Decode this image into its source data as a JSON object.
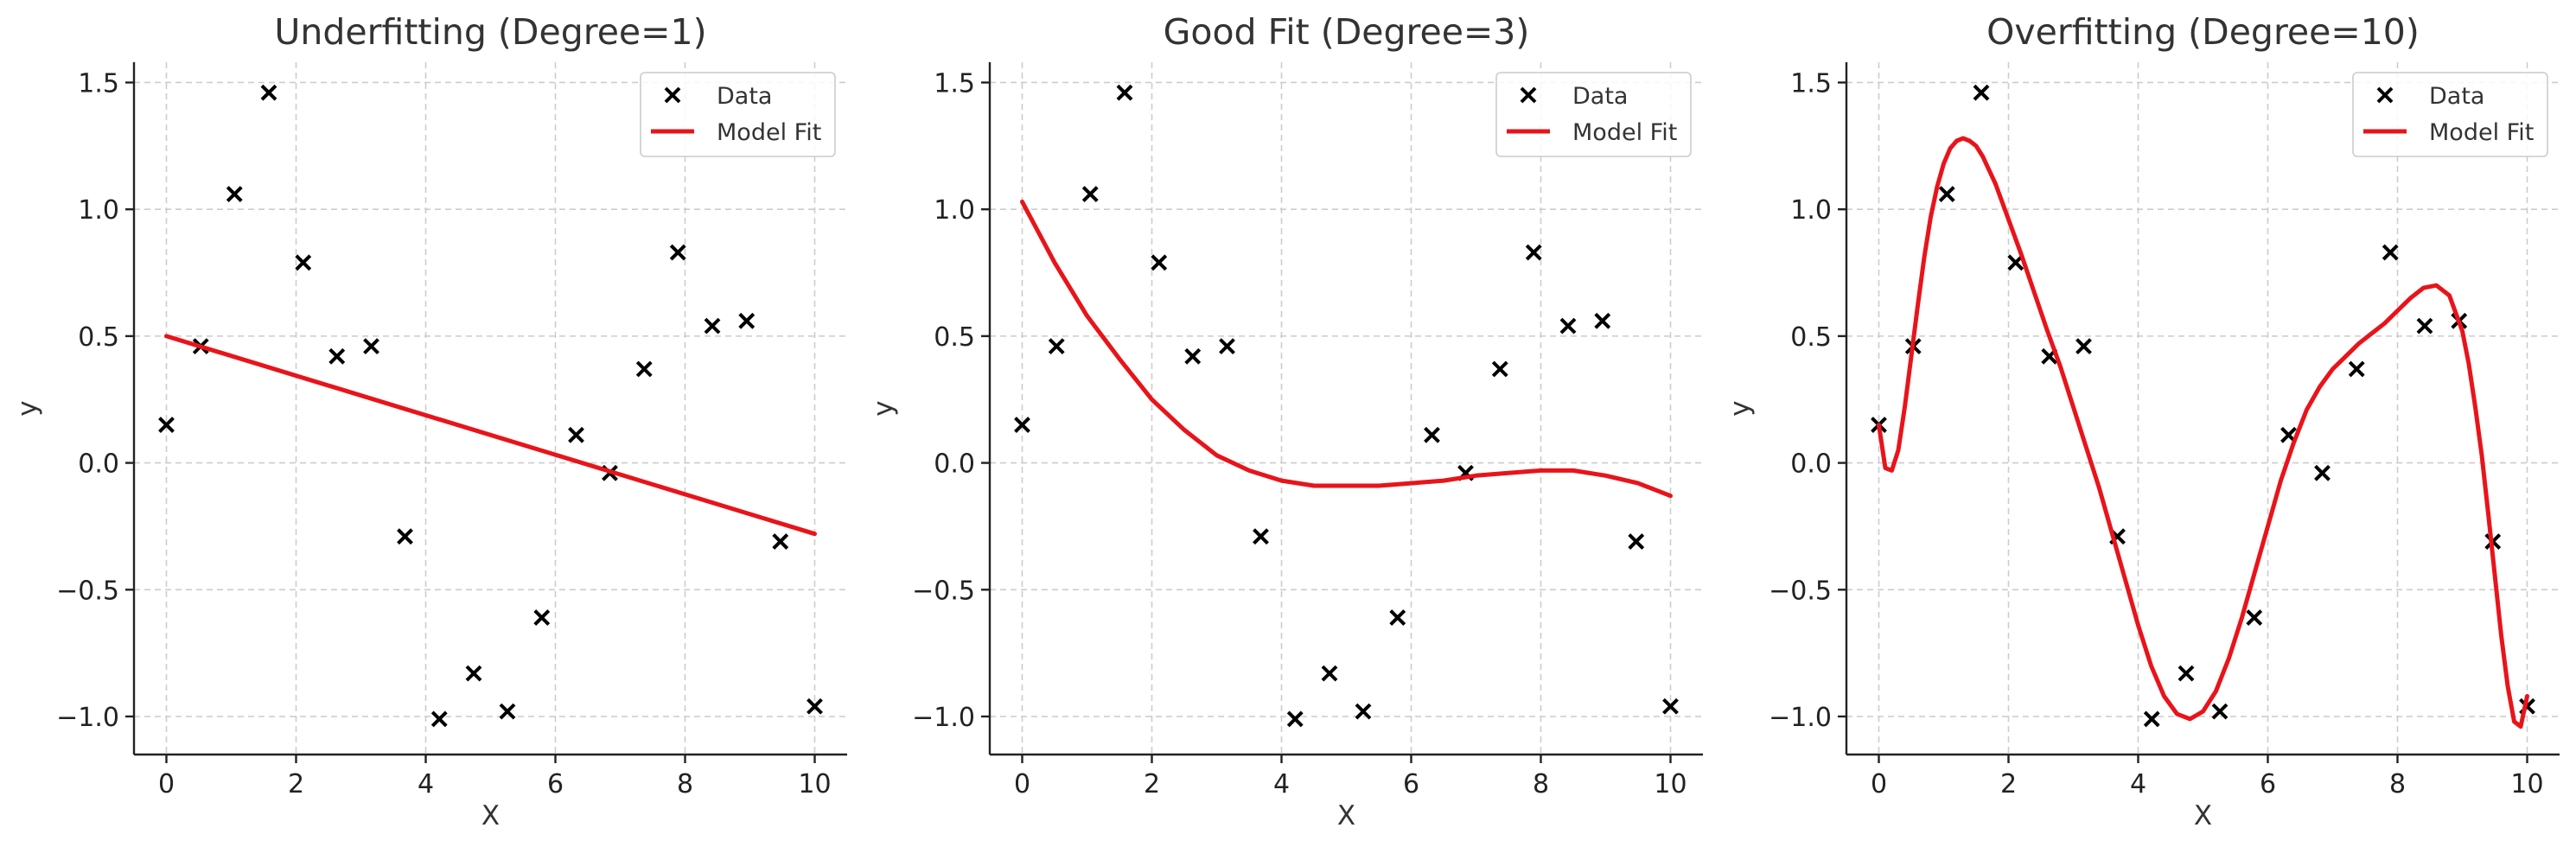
{
  "chart_data": [
    {
      "type": "scatter",
      "title": "Underfitting (Degree=1)",
      "xlabel": "X",
      "ylabel": "y",
      "xlim": [
        -0.5,
        10.5
      ],
      "ylim": [
        -1.15,
        1.58
      ],
      "xticks": [
        0,
        2,
        4,
        6,
        8,
        10
      ],
      "yticks": [
        -1.0,
        -0.5,
        0.0,
        0.5,
        1.0,
        1.5
      ],
      "grid": true,
      "legend": {
        "placement": "top-right",
        "entries": [
          "Data",
          "Model Fit"
        ]
      },
      "series": [
        {
          "name": "Data",
          "kind": "scatter",
          "marker": "x",
          "color": "#000000",
          "x": [
            0,
            0.53,
            1.05,
            1.58,
            2.11,
            2.63,
            3.16,
            3.68,
            4.21,
            4.74,
            5.26,
            5.79,
            6.32,
            6.84,
            7.37,
            7.89,
            8.42,
            8.95,
            9.47,
            10
          ],
          "y": [
            0.15,
            0.46,
            1.06,
            1.46,
            0.79,
            0.42,
            0.46,
            -0.29,
            -1.01,
            -0.83,
            -0.98,
            -0.61,
            0.11,
            -0.04,
            0.37,
            0.83,
            0.54,
            0.56,
            -0.31,
            -0.96
          ]
        },
        {
          "name": "Model Fit",
          "kind": "line",
          "color": "#e8141a",
          "x": [
            0,
            10
          ],
          "y": [
            0.5,
            -0.28
          ]
        }
      ]
    },
    {
      "type": "scatter",
      "title": "Good Fit (Degree=3)",
      "xlabel": "X",
      "ylabel": "y",
      "xlim": [
        -0.5,
        10.5
      ],
      "ylim": [
        -1.15,
        1.58
      ],
      "xticks": [
        0,
        2,
        4,
        6,
        8,
        10
      ],
      "yticks": [
        -1.0,
        -0.5,
        0.0,
        0.5,
        1.0,
        1.5
      ],
      "grid": true,
      "legend": {
        "placement": "top-right",
        "entries": [
          "Data",
          "Model Fit"
        ]
      },
      "series": [
        {
          "name": "Data",
          "kind": "scatter",
          "marker": "x",
          "color": "#000000",
          "x": [
            0,
            0.53,
            1.05,
            1.58,
            2.11,
            2.63,
            3.16,
            3.68,
            4.21,
            4.74,
            5.26,
            5.79,
            6.32,
            6.84,
            7.37,
            7.89,
            8.42,
            8.95,
            9.47,
            10
          ],
          "y": [
            0.15,
            0.46,
            1.06,
            1.46,
            0.79,
            0.42,
            0.46,
            -0.29,
            -1.01,
            -0.83,
            -0.98,
            -0.61,
            0.11,
            -0.04,
            0.37,
            0.83,
            0.54,
            0.56,
            -0.31,
            -0.96
          ]
        },
        {
          "name": "Model Fit",
          "kind": "line",
          "color": "#e8141a",
          "x": [
            0,
            0.5,
            1,
            1.5,
            2,
            2.5,
            3,
            3.5,
            4,
            4.5,
            5,
            5.5,
            6,
            6.5,
            7,
            7.5,
            8,
            8.5,
            9,
            9.5,
            10
          ],
          "y": [
            1.03,
            0.79,
            0.58,
            0.41,
            0.25,
            0.13,
            0.03,
            -0.03,
            -0.07,
            -0.09,
            -0.09,
            -0.09,
            -0.08,
            -0.07,
            -0.05,
            -0.04,
            -0.03,
            -0.03,
            -0.05,
            -0.08,
            -0.13
          ]
        }
      ]
    },
    {
      "type": "scatter",
      "title": "Overfitting (Degree=10)",
      "xlabel": "X",
      "ylabel": "y",
      "xlim": [
        -0.5,
        10.5
      ],
      "ylim": [
        -1.15,
        1.58
      ],
      "xticks": [
        0,
        2,
        4,
        6,
        8,
        10
      ],
      "yticks": [
        -1.0,
        -0.5,
        0.0,
        0.5,
        1.0,
        1.5
      ],
      "grid": true,
      "legend": {
        "placement": "top-right",
        "entries": [
          "Data",
          "Model Fit"
        ]
      },
      "series": [
        {
          "name": "Data",
          "kind": "scatter",
          "marker": "x",
          "color": "#000000",
          "x": [
            0,
            0.53,
            1.05,
            1.58,
            2.11,
            2.63,
            3.16,
            3.68,
            4.21,
            4.74,
            5.26,
            5.79,
            6.32,
            6.84,
            7.37,
            7.89,
            8.42,
            8.95,
            9.47,
            10
          ],
          "y": [
            0.15,
            0.46,
            1.06,
            1.46,
            0.79,
            0.42,
            0.46,
            -0.29,
            -1.01,
            -0.83,
            -0.98,
            -0.61,
            0.11,
            -0.04,
            0.37,
            0.83,
            0.54,
            0.56,
            -0.31,
            -0.96
          ]
        },
        {
          "name": "Model Fit",
          "kind": "line",
          "color": "#e8141a",
          "x": [
            0,
            0.1,
            0.2,
            0.3,
            0.4,
            0.5,
            0.6,
            0.7,
            0.8,
            0.9,
            1.0,
            1.1,
            1.2,
            1.3,
            1.4,
            1.5,
            1.6,
            1.8,
            2.0,
            2.2,
            2.4,
            2.6,
            2.8,
            3.0,
            3.2,
            3.4,
            3.6,
            3.8,
            4.0,
            4.2,
            4.4,
            4.6,
            4.8,
            5.0,
            5.2,
            5.4,
            5.6,
            5.8,
            6.0,
            6.2,
            6.4,
            6.6,
            6.8,
            7.0,
            7.2,
            7.4,
            7.6,
            7.8,
            8.0,
            8.2,
            8.4,
            8.6,
            8.8,
            9.0,
            9.1,
            9.2,
            9.3,
            9.4,
            9.5,
            9.6,
            9.7,
            9.8,
            9.9,
            10.0
          ],
          "y": [
            0.15,
            -0.02,
            -0.03,
            0.05,
            0.22,
            0.42,
            0.62,
            0.81,
            0.97,
            1.09,
            1.18,
            1.24,
            1.27,
            1.28,
            1.27,
            1.25,
            1.21,
            1.1,
            0.96,
            0.82,
            0.67,
            0.52,
            0.38,
            0.22,
            0.06,
            -0.1,
            -0.28,
            -0.46,
            -0.64,
            -0.8,
            -0.92,
            -0.99,
            -1.01,
            -0.98,
            -0.9,
            -0.77,
            -0.61,
            -0.43,
            -0.25,
            -0.07,
            0.08,
            0.21,
            0.3,
            0.37,
            0.42,
            0.47,
            0.51,
            0.55,
            0.6,
            0.65,
            0.69,
            0.7,
            0.66,
            0.52,
            0.39,
            0.22,
            0.03,
            -0.2,
            -0.44,
            -0.68,
            -0.88,
            -1.02,
            -1.04,
            -0.92
          ]
        }
      ]
    }
  ]
}
